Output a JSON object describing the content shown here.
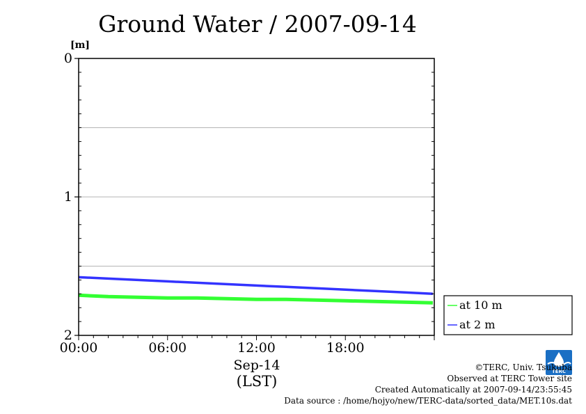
{
  "chart_data": {
    "type": "line",
    "title": "Ground Water / 2007-09-14",
    "ylabel": "[m]",
    "ylim": [
      0,
      2
    ],
    "y_inverted": true,
    "yticks": [
      {
        "value": 0,
        "label": "0"
      },
      {
        "value": 1,
        "label": "1"
      },
      {
        "value": 2,
        "label": "2"
      }
    ],
    "y_gridlines": [
      0.5,
      1,
      1.5
    ],
    "xlim": [
      0,
      24
    ],
    "xticks": [
      {
        "value": 0,
        "label": "00:00"
      },
      {
        "value": 6,
        "label": "06:00"
      },
      {
        "value": 12,
        "label": "12:00"
      },
      {
        "value": 18,
        "label": "18:00"
      }
    ],
    "xlabel_date": "Sep-14",
    "xlabel": "(LST)",
    "legend_position": "right-bottom",
    "series": [
      {
        "name": "at 10 m",
        "color": "#33ff33",
        "x": [
          0,
          2,
          4,
          6,
          8,
          10,
          12,
          14,
          16,
          18,
          20,
          22,
          23.9
        ],
        "y": [
          1.71,
          1.72,
          1.725,
          1.73,
          1.73,
          1.735,
          1.74,
          1.74,
          1.745,
          1.75,
          1.755,
          1.76,
          1.765
        ]
      },
      {
        "name": "at 2 m",
        "color": "#3333ff",
        "x": [
          0,
          2,
          4,
          6,
          8,
          10,
          12,
          14,
          16,
          18,
          20,
          22,
          23.9
        ],
        "y": [
          1.58,
          1.59,
          1.6,
          1.61,
          1.62,
          1.63,
          1.64,
          1.65,
          1.66,
          1.67,
          1.68,
          1.69,
          1.7
        ]
      }
    ]
  },
  "credits": {
    "copyright": "©TERC, Univ. Tsukuba",
    "observed": "Observed at TERC Tower site",
    "created": "Created Automatically at 2007-09-14/23:55:45",
    "source": "Data source : /home/hojyo/new/TERC-data/sorted_data/MET.10s.dat"
  },
  "logo": {
    "label": "TERC",
    "color": "#1a6fc4"
  }
}
